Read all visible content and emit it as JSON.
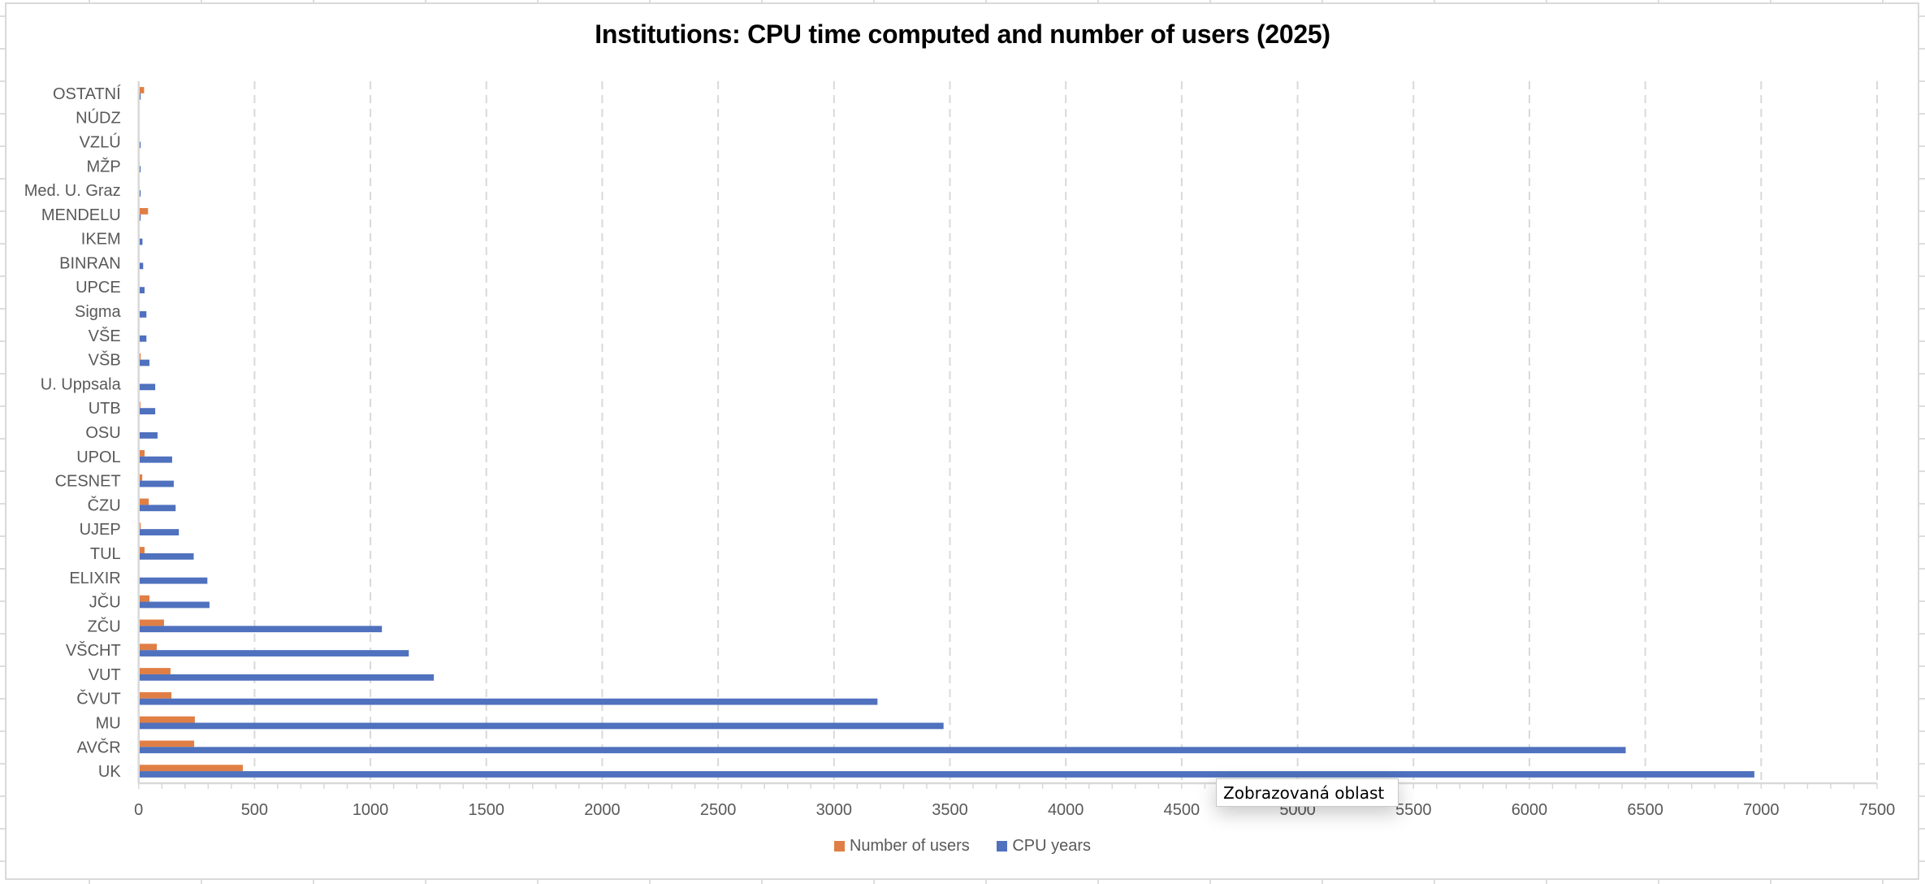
{
  "colors": {
    "users": "#E07F45",
    "cpu": "#4F71BE",
    "grid": "#d9d9d9",
    "axis": "#d9d9d9",
    "text": "#595959"
  },
  "tooltip": {
    "text": "Zobrazovaná oblast"
  },
  "chart_data": {
    "type": "bar",
    "orientation": "horizontal",
    "title": "Institutions: CPU time computed and number of users (2025)",
    "xlabel": "",
    "ylabel": "",
    "xlim": [
      0,
      7500
    ],
    "xticks": [
      "0",
      "500",
      "1000",
      "1500",
      "2000",
      "2500",
      "3000",
      "3500",
      "4000",
      "4500",
      "5000",
      "5500",
      "6000",
      "6500",
      "7000",
      "7500"
    ],
    "grid": "vertical dashed",
    "legend_position": "bottom",
    "categories": [
      "OSTATNÍ",
      "NÚDZ",
      "VZLÚ",
      "MŽP",
      "Med. U. Graz",
      "MENDELU",
      "IKEM",
      "BINRAN",
      "UPCE",
      "Sigma",
      "VŠE",
      "VŠB",
      "U. Uppsala",
      "UTB",
      "OSU",
      "UPOL",
      "CESNET",
      "ČZU",
      "UJEP",
      "TUL",
      "ELIXIR",
      "JČU",
      "ZČU",
      "VŠCHT",
      "VUT",
      "ČVUT",
      "MU",
      "AVČR",
      "UK"
    ],
    "series": [
      {
        "name": "Number of users",
        "values": [
          20,
          0,
          0,
          1,
          0,
          37,
          0,
          0,
          1,
          0,
          0,
          5,
          0,
          4,
          0,
          22,
          12,
          40,
          5,
          22,
          0,
          43,
          106,
          75,
          134,
          138,
          239,
          236,
          446
        ]
      },
      {
        "name": "CPU years",
        "values": [
          5,
          0,
          5,
          5,
          5,
          5,
          13,
          16,
          22,
          30,
          30,
          43,
          68,
          68,
          78,
          141,
          148,
          156,
          170,
          234,
          293,
          302,
          1046,
          1162,
          1270,
          3184,
          3469,
          6412,
          6967
        ]
      }
    ]
  }
}
